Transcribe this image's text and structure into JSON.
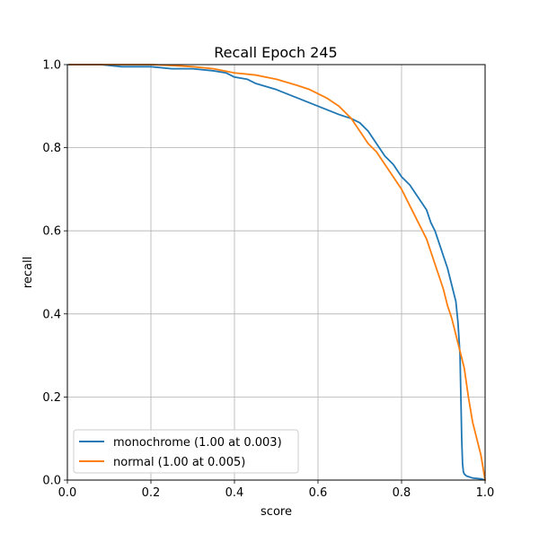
{
  "chart_data": {
    "type": "line",
    "title": "Recall Epoch 245",
    "xlabel": "score",
    "ylabel": "recall",
    "xlim": [
      0.0,
      1.0
    ],
    "ylim": [
      0.0,
      1.0
    ],
    "x_ticks": [
      0.0,
      0.2,
      0.4,
      0.6,
      0.8,
      1.0
    ],
    "y_ticks": [
      0.0,
      0.2,
      0.4,
      0.6,
      0.8,
      1.0
    ],
    "x_tick_labels": [
      "0.0",
      "0.2",
      "0.4",
      "0.6",
      "0.8",
      "1.0"
    ],
    "y_tick_labels": [
      "0.0",
      "0.2",
      "0.4",
      "0.6",
      "0.8",
      "1.0"
    ],
    "grid": true,
    "legend_position": "lower-left",
    "series": [
      {
        "name": "monochrome (1.00 at 0.003)",
        "color": "#1f77b4",
        "x": [
          0.003,
          0.05,
          0.08,
          0.13,
          0.2,
          0.25,
          0.3,
          0.35,
          0.38,
          0.4,
          0.43,
          0.45,
          0.5,
          0.55,
          0.6,
          0.65,
          0.68,
          0.7,
          0.72,
          0.74,
          0.76,
          0.78,
          0.8,
          0.82,
          0.84,
          0.86,
          0.87,
          0.88,
          0.89,
          0.9,
          0.91,
          0.92,
          0.93,
          0.935,
          0.94,
          0.942,
          0.944,
          0.946,
          0.948,
          0.95,
          0.955,
          0.97,
          0.99,
          1.0
        ],
        "y": [
          1.0,
          1.0,
          1.0,
          0.995,
          0.995,
          0.99,
          0.99,
          0.985,
          0.98,
          0.97,
          0.965,
          0.955,
          0.94,
          0.92,
          0.9,
          0.88,
          0.87,
          0.86,
          0.84,
          0.81,
          0.78,
          0.76,
          0.73,
          0.71,
          0.68,
          0.65,
          0.62,
          0.6,
          0.57,
          0.54,
          0.51,
          0.47,
          0.43,
          0.38,
          0.3,
          0.2,
          0.1,
          0.04,
          0.02,
          0.015,
          0.01,
          0.005,
          0.003,
          0.0
        ]
      },
      {
        "name": "normal (1.00 at 0.005)",
        "color": "#ff7f0e",
        "x": [
          0.005,
          0.05,
          0.08,
          0.15,
          0.2,
          0.25,
          0.3,
          0.35,
          0.4,
          0.45,
          0.5,
          0.55,
          0.58,
          0.6,
          0.62,
          0.65,
          0.68,
          0.7,
          0.72,
          0.74,
          0.76,
          0.78,
          0.8,
          0.82,
          0.84,
          0.86,
          0.87,
          0.88,
          0.89,
          0.9,
          0.91,
          0.92,
          0.93,
          0.94,
          0.95,
          0.96,
          0.97,
          0.98,
          0.99,
          1.0
        ],
        "y": [
          1.0,
          1.0,
          1.0,
          1.0,
          1.0,
          0.998,
          0.995,
          0.99,
          0.98,
          0.975,
          0.965,
          0.95,
          0.94,
          0.93,
          0.92,
          0.9,
          0.87,
          0.84,
          0.81,
          0.79,
          0.76,
          0.73,
          0.7,
          0.66,
          0.62,
          0.58,
          0.55,
          0.52,
          0.49,
          0.46,
          0.42,
          0.39,
          0.35,
          0.31,
          0.27,
          0.2,
          0.14,
          0.1,
          0.06,
          0.0
        ]
      }
    ]
  }
}
